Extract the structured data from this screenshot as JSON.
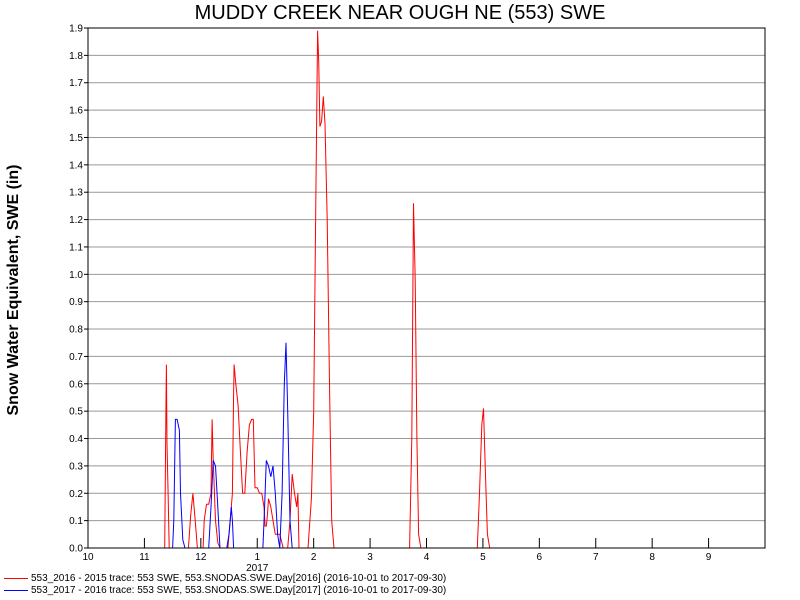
{
  "colors": {
    "series_2016": "#ff0000",
    "series_2017": "#0000ff",
    "grid": "#999999"
  },
  "chart_data": {
    "type": "line",
    "title": "MUDDY CREEK NEAR OUGH NE (553) SWE",
    "ylabel": "Snow Water Equivalent, SWE (in)",
    "xlabel": "",
    "ylim": [
      0,
      1.9
    ],
    "yticks": [
      "0.0",
      "0.1",
      "0.2",
      "0.3",
      "0.4",
      "0.5",
      "0.6",
      "0.7",
      "0.8",
      "0.9",
      "1.0",
      "1.1",
      "1.2",
      "1.3",
      "1.4",
      "1.5",
      "1.6",
      "1.7",
      "1.8",
      "1.9"
    ],
    "xticks": [
      "10",
      "11",
      "12",
      "1",
      "2",
      "3",
      "4",
      "5",
      "6",
      "7",
      "8",
      "9"
    ],
    "year_label": "2017",
    "x_units": "months from 2016-10-01",
    "xlim": [
      0,
      12
    ],
    "grid": "horizontal",
    "legend_position": "bottom",
    "series": [
      {
        "name": "553_2016 - 2015 trace: 553 SWE, 553.SNODAS.SWE.Day[2016] (2016-10-01 to 2017-09-30)",
        "color": "#ff0000",
        "points": [
          [
            0,
            0
          ],
          [
            1.36,
            0
          ],
          [
            1.38,
            0.5
          ],
          [
            1.39,
            0.67
          ],
          [
            1.4,
            0.38
          ],
          [
            1.42,
            0.2
          ],
          [
            1.44,
            0
          ],
          [
            1.78,
            0
          ],
          [
            1.82,
            0.12
          ],
          [
            1.86,
            0.2
          ],
          [
            1.9,
            0.1
          ],
          [
            1.94,
            0
          ],
          [
            2.04,
            0
          ],
          [
            2.06,
            0.1
          ],
          [
            2.1,
            0.16
          ],
          [
            2.14,
            0.16
          ],
          [
            2.18,
            0.2
          ],
          [
            2.2,
            0.47
          ],
          [
            2.22,
            0.32
          ],
          [
            2.26,
            0.1
          ],
          [
            2.3,
            0.02
          ],
          [
            2.34,
            0
          ],
          [
            2.48,
            0
          ],
          [
            2.52,
            0.1
          ],
          [
            2.56,
            0.2
          ],
          [
            2.58,
            0.56
          ],
          [
            2.59,
            0.67
          ],
          [
            2.62,
            0.6
          ],
          [
            2.66,
            0.52
          ],
          [
            2.7,
            0.36
          ],
          [
            2.74,
            0.2
          ],
          [
            2.78,
            0.2
          ],
          [
            2.82,
            0.35
          ],
          [
            2.86,
            0.45
          ],
          [
            2.9,
            0.47
          ],
          [
            2.93,
            0.47
          ],
          [
            2.96,
            0.22
          ],
          [
            3.0,
            0.22
          ],
          [
            3.04,
            0.2
          ],
          [
            3.08,
            0.2
          ],
          [
            3.12,
            0.15
          ],
          [
            3.14,
            0.08
          ],
          [
            3.16,
            0.08
          ],
          [
            3.18,
            0.12
          ],
          [
            3.2,
            0.18
          ],
          [
            3.24,
            0.15
          ],
          [
            3.28,
            0.1
          ],
          [
            3.32,
            0.05
          ],
          [
            3.4,
            0.05
          ],
          [
            3.46,
            0
          ],
          [
            3.54,
            0
          ],
          [
            3.58,
            0.1
          ],
          [
            3.62,
            0.27
          ],
          [
            3.66,
            0.2
          ],
          [
            3.7,
            0.15
          ],
          [
            3.72,
            0.2
          ],
          [
            3.74,
            0
          ],
          [
            3.9,
            0
          ],
          [
            3.96,
            0.18
          ],
          [
            4.0,
            0.5
          ],
          [
            4.04,
            1.3
          ],
          [
            4.07,
            1.89
          ],
          [
            4.09,
            1.78
          ],
          [
            4.11,
            1.54
          ],
          [
            4.14,
            1.56
          ],
          [
            4.17,
            1.65
          ],
          [
            4.2,
            1.55
          ],
          [
            4.24,
            1.2
          ],
          [
            4.28,
            0.6
          ],
          [
            4.32,
            0.1
          ],
          [
            4.36,
            0
          ],
          [
            5.7,
            0
          ],
          [
            5.74,
            0.4
          ],
          [
            5.77,
            1.26
          ],
          [
            5.8,
            0.98
          ],
          [
            5.83,
            0.4
          ],
          [
            5.86,
            0.05
          ],
          [
            5.9,
            0
          ],
          [
            6.9,
            0
          ],
          [
            6.94,
            0.2
          ],
          [
            6.98,
            0.45
          ],
          [
            7.01,
            0.51
          ],
          [
            7.04,
            0.3
          ],
          [
            7.08,
            0.05
          ],
          [
            7.12,
            0
          ],
          [
            12,
            0
          ]
        ]
      },
      {
        "name": "553_2017 - 2016 trace: 553 SWE, 553.SNODAS.SWE.Day[2017] (2016-10-01 to 2017-09-30)",
        "color": "#0000ff",
        "points": [
          [
            0,
            0
          ],
          [
            1.5,
            0
          ],
          [
            1.52,
            0.1
          ],
          [
            1.55,
            0.47
          ],
          [
            1.58,
            0.47
          ],
          [
            1.62,
            0.43
          ],
          [
            1.64,
            0.2
          ],
          [
            1.68,
            0.03
          ],
          [
            1.72,
            0
          ],
          [
            2.14,
            0
          ],
          [
            2.18,
            0.15
          ],
          [
            2.22,
            0.32
          ],
          [
            2.26,
            0.3
          ],
          [
            2.3,
            0.15
          ],
          [
            2.34,
            0
          ],
          [
            2.46,
            0
          ],
          [
            2.5,
            0.05
          ],
          [
            2.54,
            0.15
          ],
          [
            2.56,
            0.1
          ],
          [
            2.58,
            0
          ],
          [
            3.1,
            0
          ],
          [
            3.13,
            0.15
          ],
          [
            3.16,
            0.32
          ],
          [
            3.2,
            0.3
          ],
          [
            3.24,
            0.26
          ],
          [
            3.28,
            0.3
          ],
          [
            3.32,
            0.2
          ],
          [
            3.36,
            0.05
          ],
          [
            3.4,
            0
          ],
          [
            3.44,
            0.2
          ],
          [
            3.48,
            0.6
          ],
          [
            3.51,
            0.75
          ],
          [
            3.54,
            0.5
          ],
          [
            3.58,
            0.1
          ],
          [
            3.62,
            0
          ],
          [
            12,
            0
          ]
        ]
      }
    ]
  },
  "legend": {
    "entries": [
      {
        "label": "553_2016 - 2015 trace: 553 SWE, 553.SNODAS.SWE.Day[2016] (2016-10-01 to 2017-09-30)",
        "color": "#ff0000"
      },
      {
        "label": "553_2017 - 2016 trace: 553 SWE, 553.SNODAS.SWE.Day[2017] (2016-10-01 to 2017-09-30)",
        "color": "#0000ff"
      }
    ]
  }
}
